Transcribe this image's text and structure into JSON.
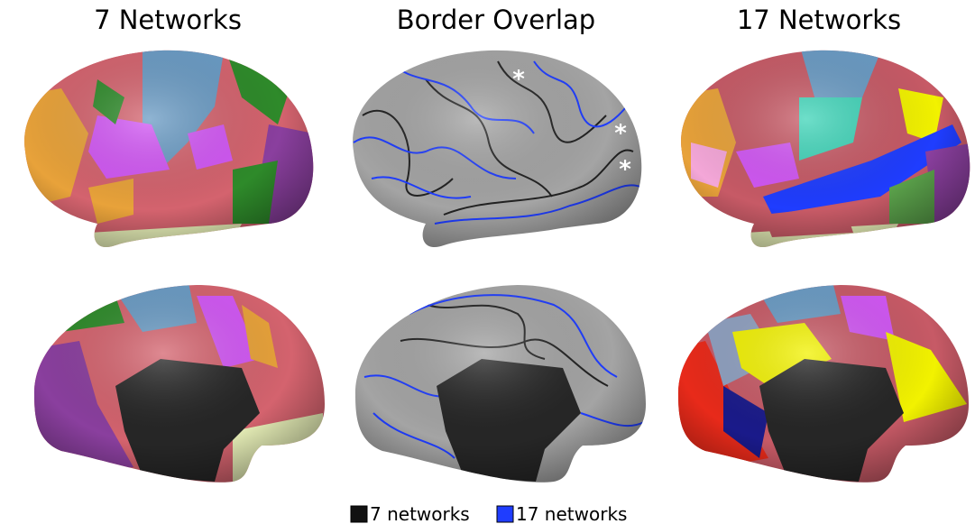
{
  "titles": [
    "7 Networks",
    "Border Overlap",
    "17 Networks"
  ],
  "annotations": [
    "*",
    "*",
    "*"
  ],
  "legend": [
    {
      "label": "7 networks",
      "color": "#111111"
    },
    {
      "label": "17 networks",
      "color": "#1f3dff"
    }
  ]
}
